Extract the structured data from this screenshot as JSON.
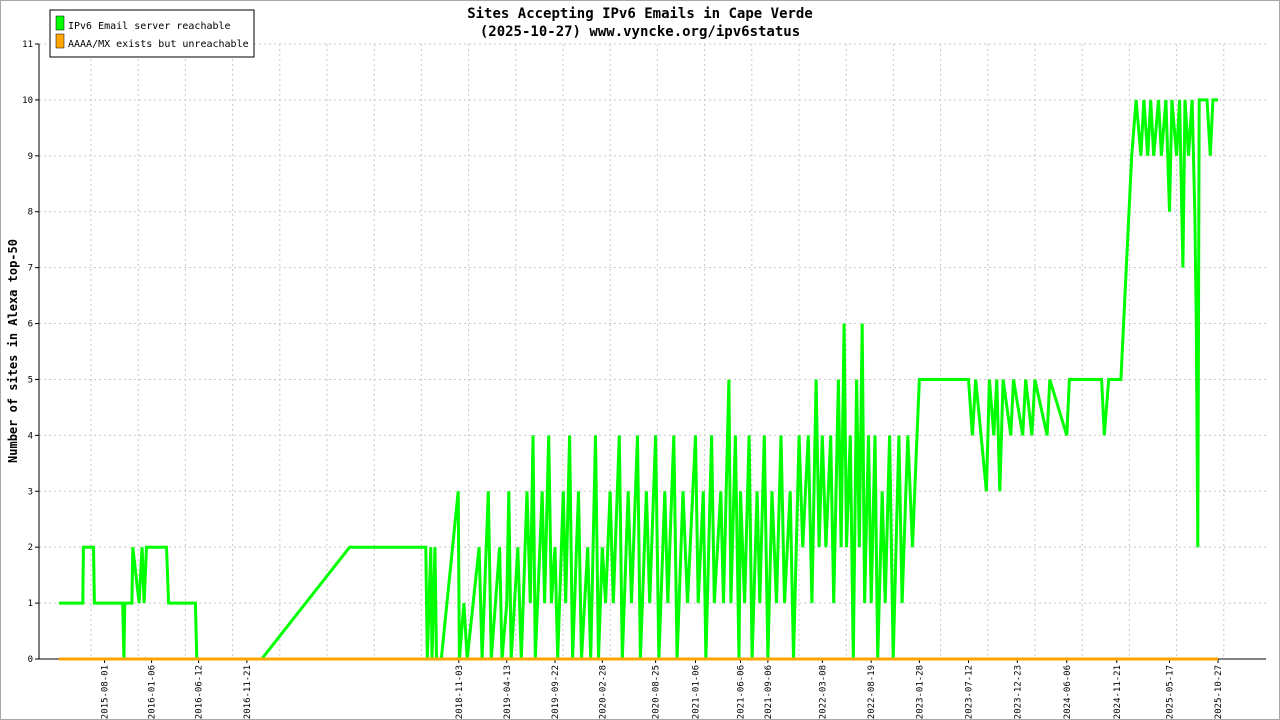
{
  "chart_data": {
    "type": "line",
    "title": "Sites Accepting IPv6 Emails in Cape Verde",
    "subtitle": "(2025-10-27) www.vyncke.org/ipv6status",
    "xlabel": "",
    "ylabel": "Number of sites in Alexa top-50",
    "ylim": [
      0,
      11
    ],
    "yticks": [
      0,
      1,
      2,
      3,
      4,
      5,
      6,
      7,
      8,
      9,
      10,
      11
    ],
    "xticks": [
      "2015-08-01",
      "2016-01-06",
      "2016-06-12",
      "2016-11-21",
      "2018-11-03",
      "2019-04-13",
      "2019-09-22",
      "2020-02-28",
      "2020-08-25",
      "2021-01-06",
      "2021-06-06",
      "2021-09-06",
      "2022-03-08",
      "2022-08-19",
      "2023-01-28",
      "2023-07-12",
      "2023-12-23",
      "2024-06-06",
      "2024-11-21",
      "2025-05-17",
      "2025-10-27"
    ],
    "xrange": [
      "2015-03-01",
      "2025-10-27"
    ],
    "grid": true,
    "legend_position": "top-left",
    "series": [
      {
        "name": "IPv6 Email server reachable",
        "color": "#00ff00",
        "points": [
          [
            "2015-03-01",
            1
          ],
          [
            "2015-05-20",
            1
          ],
          [
            "2015-05-22",
            2
          ],
          [
            "2015-06-25",
            2
          ],
          [
            "2015-06-28",
            1
          ],
          [
            "2015-10-01",
            1
          ],
          [
            "2015-10-05",
            0
          ],
          [
            "2015-10-08",
            1
          ],
          [
            "2015-11-01",
            1
          ],
          [
            "2015-11-04",
            2
          ],
          [
            "2015-11-25",
            1
          ],
          [
            "2015-12-05",
            2
          ],
          [
            "2015-12-12",
            1
          ],
          [
            "2015-12-20",
            2
          ],
          [
            "2016-02-20",
            2
          ],
          [
            "2016-02-25",
            2
          ],
          [
            "2016-03-03",
            1
          ],
          [
            "2016-05-15",
            1
          ],
          [
            "2016-06-01",
            1
          ],
          [
            "2016-06-06",
            0
          ],
          [
            "2016-07-10",
            0
          ],
          [
            "2016-07-20",
            0
          ],
          [
            "2016-11-21",
            0
          ],
          [
            "2017-01-10",
            0
          ],
          [
            "2017-11-01",
            2
          ],
          [
            "2018-07-15",
            2
          ],
          [
            "2018-07-20",
            0
          ],
          [
            "2018-08-01",
            2
          ],
          [
            "2018-08-05",
            0
          ],
          [
            "2018-08-15",
            2
          ],
          [
            "2018-08-20",
            0
          ],
          [
            "2018-09-05",
            0
          ],
          [
            "2018-11-01",
            3
          ],
          [
            "2018-11-05",
            0
          ],
          [
            "2018-11-20",
            1
          ],
          [
            "2018-12-01",
            0
          ],
          [
            "2019-01-10",
            2
          ],
          [
            "2019-01-20",
            0
          ],
          [
            "2019-02-10",
            3
          ],
          [
            "2019-02-20",
            0
          ],
          [
            "2019-03-20",
            2
          ],
          [
            "2019-03-28",
            0
          ],
          [
            "2019-04-13",
            1
          ],
          [
            "2019-04-20",
            3
          ],
          [
            "2019-04-28",
            0
          ],
          [
            "2019-05-20",
            2
          ],
          [
            "2019-06-01",
            0
          ],
          [
            "2019-06-20",
            3
          ],
          [
            "2019-07-01",
            1
          ],
          [
            "2019-07-10",
            4
          ],
          [
            "2019-07-18",
            0
          ],
          [
            "2019-08-10",
            3
          ],
          [
            "2019-08-18",
            1
          ],
          [
            "2019-09-01",
            4
          ],
          [
            "2019-09-10",
            1
          ],
          [
            "2019-09-22",
            2
          ],
          [
            "2019-10-01",
            0
          ],
          [
            "2019-10-20",
            3
          ],
          [
            "2019-10-28",
            1
          ],
          [
            "2019-11-10",
            4
          ],
          [
            "2019-11-20",
            0
          ],
          [
            "2019-12-10",
            3
          ],
          [
            "2019-12-20",
            0
          ],
          [
            "2020-01-10",
            2
          ],
          [
            "2020-01-20",
            0
          ],
          [
            "2020-02-05",
            4
          ],
          [
            "2020-02-15",
            0
          ],
          [
            "2020-02-28",
            2
          ],
          [
            "2020-03-10",
            1
          ],
          [
            "2020-03-25",
            3
          ],
          [
            "2020-04-05",
            1
          ],
          [
            "2020-04-25",
            4
          ],
          [
            "2020-05-05",
            0
          ],
          [
            "2020-05-25",
            3
          ],
          [
            "2020-06-05",
            1
          ],
          [
            "2020-06-25",
            4
          ],
          [
            "2020-07-05",
            0
          ],
          [
            "2020-07-25",
            3
          ],
          [
            "2020-08-05",
            1
          ],
          [
            "2020-08-25",
            4
          ],
          [
            "2020-09-05",
            0
          ],
          [
            "2020-09-25",
            3
          ],
          [
            "2020-10-05",
            1
          ],
          [
            "2020-10-25",
            4
          ],
          [
            "2020-11-05",
            0
          ],
          [
            "2020-11-25",
            3
          ],
          [
            "2020-12-10",
            1
          ],
          [
            "2021-01-06",
            4
          ],
          [
            "2021-01-15",
            1
          ],
          [
            "2021-02-01",
            3
          ],
          [
            "2021-02-10",
            0
          ],
          [
            "2021-03-01",
            4
          ],
          [
            "2021-03-10",
            1
          ],
          [
            "2021-04-01",
            3
          ],
          [
            "2021-04-10",
            1
          ],
          [
            "2021-04-28",
            5
          ],
          [
            "2021-05-05",
            1
          ],
          [
            "2021-05-20",
            4
          ],
          [
            "2021-06-01",
            0
          ],
          [
            "2021-06-06",
            3
          ],
          [
            "2021-06-20",
            1
          ],
          [
            "2021-07-05",
            4
          ],
          [
            "2021-07-15",
            0
          ],
          [
            "2021-08-01",
            3
          ],
          [
            "2021-08-10",
            1
          ],
          [
            "2021-08-25",
            4
          ],
          [
            "2021-09-06",
            0
          ],
          [
            "2021-09-20",
            3
          ],
          [
            "2021-10-05",
            1
          ],
          [
            "2021-10-20",
            4
          ],
          [
            "2021-11-01",
            1
          ],
          [
            "2021-11-20",
            3
          ],
          [
            "2021-12-01",
            0
          ],
          [
            "2021-12-20",
            4
          ],
          [
            "2022-01-01",
            2
          ],
          [
            "2022-01-20",
            4
          ],
          [
            "2022-02-01",
            1
          ],
          [
            "2022-02-15",
            5
          ],
          [
            "2022-02-25",
            2
          ],
          [
            "2022-03-08",
            4
          ],
          [
            "2022-03-20",
            2
          ],
          [
            "2022-04-05",
            4
          ],
          [
            "2022-04-15",
            1
          ],
          [
            "2022-05-01",
            5
          ],
          [
            "2022-05-10",
            2
          ],
          [
            "2022-05-20",
            6
          ],
          [
            "2022-05-28",
            2
          ],
          [
            "2022-06-10",
            4
          ],
          [
            "2022-06-20",
            0
          ],
          [
            "2022-07-01",
            5
          ],
          [
            "2022-07-10",
            2
          ],
          [
            "2022-07-20",
            6
          ],
          [
            "2022-07-28",
            1
          ],
          [
            "2022-08-10",
            4
          ],
          [
            "2022-08-19",
            1
          ],
          [
            "2022-09-01",
            4
          ],
          [
            "2022-09-10",
            0
          ],
          [
            "2022-09-25",
            3
          ],
          [
            "2022-10-05",
            1
          ],
          [
            "2022-10-20",
            4
          ],
          [
            "2022-11-01",
            0
          ],
          [
            "2022-11-20",
            4
          ],
          [
            "2022-12-01",
            1
          ],
          [
            "2022-12-20",
            4
          ],
          [
            "2023-01-05",
            2
          ],
          [
            "2023-01-20",
            4
          ],
          [
            "2023-01-28",
            5
          ],
          [
            "2023-07-12",
            5
          ],
          [
            "2023-07-25",
            4
          ],
          [
            "2023-08-05",
            5
          ],
          [
            "2023-09-10",
            3
          ],
          [
            "2023-09-20",
            5
          ],
          [
            "2023-10-05",
            4
          ],
          [
            "2023-10-15",
            5
          ],
          [
            "2023-10-25",
            3
          ],
          [
            "2023-11-05",
            5
          ],
          [
            "2023-12-01",
            4
          ],
          [
            "2023-12-10",
            5
          ],
          [
            "2024-01-10",
            4
          ],
          [
            "2024-01-20",
            5
          ],
          [
            "2024-02-10",
            4
          ],
          [
            "2024-02-20",
            5
          ],
          [
            "2024-04-01",
            4
          ],
          [
            "2024-04-10",
            5
          ],
          [
            "2024-06-06",
            4
          ],
          [
            "2024-06-15",
            5
          ],
          [
            "2024-10-01",
            5
          ],
          [
            "2024-10-10",
            4
          ],
          [
            "2024-10-25",
            5
          ],
          [
            "2024-11-21",
            5
          ],
          [
            "2024-12-05",
            5
          ],
          [
            "2025-01-10",
            9
          ],
          [
            "2025-01-25",
            10
          ],
          [
            "2025-02-10",
            9
          ],
          [
            "2025-02-20",
            10
          ],
          [
            "2025-03-05",
            9
          ],
          [
            "2025-03-15",
            10
          ],
          [
            "2025-03-25",
            9
          ],
          [
            "2025-04-10",
            10
          ],
          [
            "2025-04-20",
            9
          ],
          [
            "2025-05-05",
            10
          ],
          [
            "2025-05-17",
            8
          ],
          [
            "2025-05-25",
            10
          ],
          [
            "2025-06-10",
            9
          ],
          [
            "2025-06-20",
            10
          ],
          [
            "2025-07-01",
            7
          ],
          [
            "2025-07-08",
            10
          ],
          [
            "2025-07-20",
            9
          ],
          [
            "2025-08-01",
            10
          ],
          [
            "2025-08-10",
            8
          ],
          [
            "2025-08-15",
            6
          ],
          [
            "2025-08-20",
            2
          ],
          [
            "2025-08-25",
            10
          ],
          [
            "2025-09-20",
            10
          ],
          [
            "2025-10-01",
            9
          ],
          [
            "2025-10-10",
            10
          ],
          [
            "2025-10-27",
            10
          ]
        ]
      },
      {
        "name": "AAAA/MX exists but unreachable",
        "color": "#ffa500",
        "points": [
          [
            "2015-03-01",
            0
          ],
          [
            "2025-10-27",
            0
          ]
        ]
      }
    ]
  }
}
